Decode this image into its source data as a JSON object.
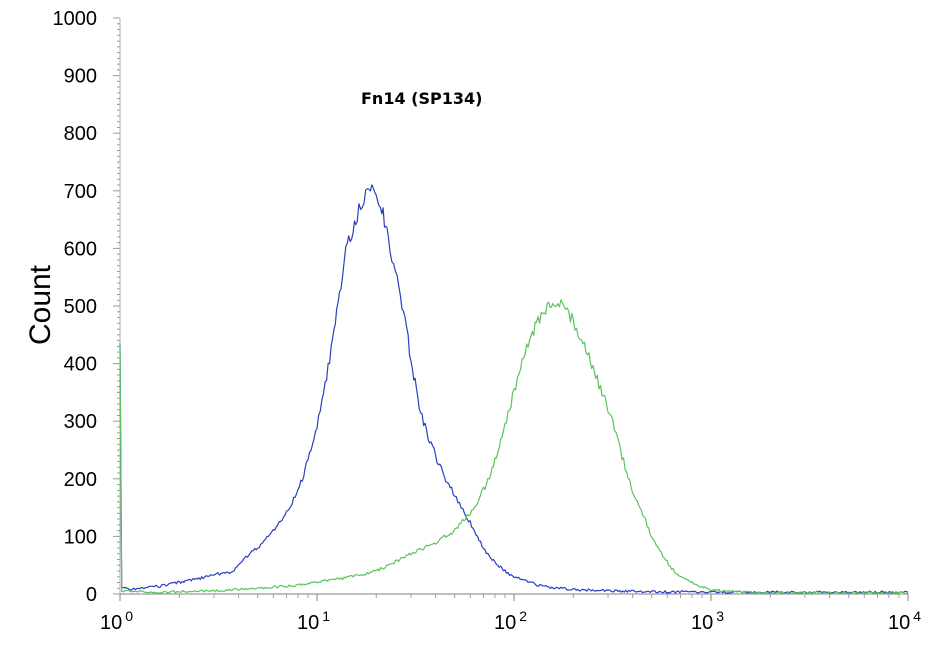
{
  "chart_data": {
    "type": "line",
    "title": "Fn14  (SP134)",
    "xlabel": "",
    "ylabel": "Count",
    "x_scale": "log",
    "xlim": [
      1,
      10000
    ],
    "ylim": [
      0,
      1000
    ],
    "grid": false,
    "legend": "none",
    "y_ticks": [
      "0",
      "100",
      "200",
      "300",
      "400",
      "500",
      "600",
      "700",
      "800",
      "900",
      "1000"
    ],
    "x_ticks": [
      {
        "base": "10",
        "exp": "0"
      },
      {
        "base": "10",
        "exp": "1"
      },
      {
        "base": "10",
        "exp": "2"
      },
      {
        "base": "10",
        "exp": "3"
      },
      {
        "base": "10",
        "exp": "4"
      }
    ],
    "series": [
      {
        "color": "#2c3fbf",
        "x": [
          1,
          1.02,
          1.1,
          1.3,
          1.6,
          2.0,
          2.6,
          3.2,
          3.8,
          4.2,
          5.0,
          6.0,
          7.0,
          8.0,
          9.0,
          10,
          11,
          12,
          13,
          14,
          15,
          16,
          17,
          18,
          19,
          20,
          21,
          22,
          23,
          24,
          25,
          27,
          29,
          31,
          33,
          36,
          40,
          45,
          50,
          56,
          63,
          70,
          80,
          90,
          100,
          120,
          140,
          170,
          200,
          260,
          350,
          500,
          1000,
          3000,
          10000
        ],
        "values": [
          435,
          12,
          8,
          10,
          14,
          20,
          28,
          35,
          40,
          60,
          80,
          110,
          140,
          180,
          230,
          290,
          360,
          440,
          520,
          590,
          630,
          660,
          680,
          690,
          700,
          690,
          670,
          650,
          620,
          590,
          560,
          500,
          440,
          380,
          330,
          280,
          240,
          200,
          170,
          140,
          110,
          80,
          55,
          40,
          30,
          20,
          13,
          10,
          8,
          6,
          5,
          4,
          3,
          3,
          3
        ]
      },
      {
        "color": "#5cc45c",
        "x": [
          1,
          1.02,
          1.5,
          3,
          5,
          8,
          10,
          15,
          20,
          25,
          30,
          40,
          50,
          60,
          70,
          80,
          90,
          100,
          110,
          120,
          130,
          140,
          150,
          160,
          170,
          180,
          190,
          200,
          220,
          240,
          260,
          280,
          300,
          330,
          360,
          400,
          450,
          500,
          560,
          630,
          700,
          800,
          900,
          1000,
          1200,
          1500,
          2000,
          3000,
          5000,
          10000
        ],
        "values": [
          435,
          5,
          3,
          5,
          10,
          15,
          20,
          30,
          40,
          55,
          70,
          90,
          110,
          140,
          180,
          230,
          290,
          350,
          400,
          440,
          470,
          490,
          505,
          510,
          505,
          500,
          490,
          470,
          440,
          410,
          380,
          350,
          320,
          280,
          230,
          180,
          140,
          100,
          70,
          45,
          30,
          20,
          12,
          8,
          5,
          3,
          2,
          2,
          2,
          2
        ]
      }
    ]
  }
}
